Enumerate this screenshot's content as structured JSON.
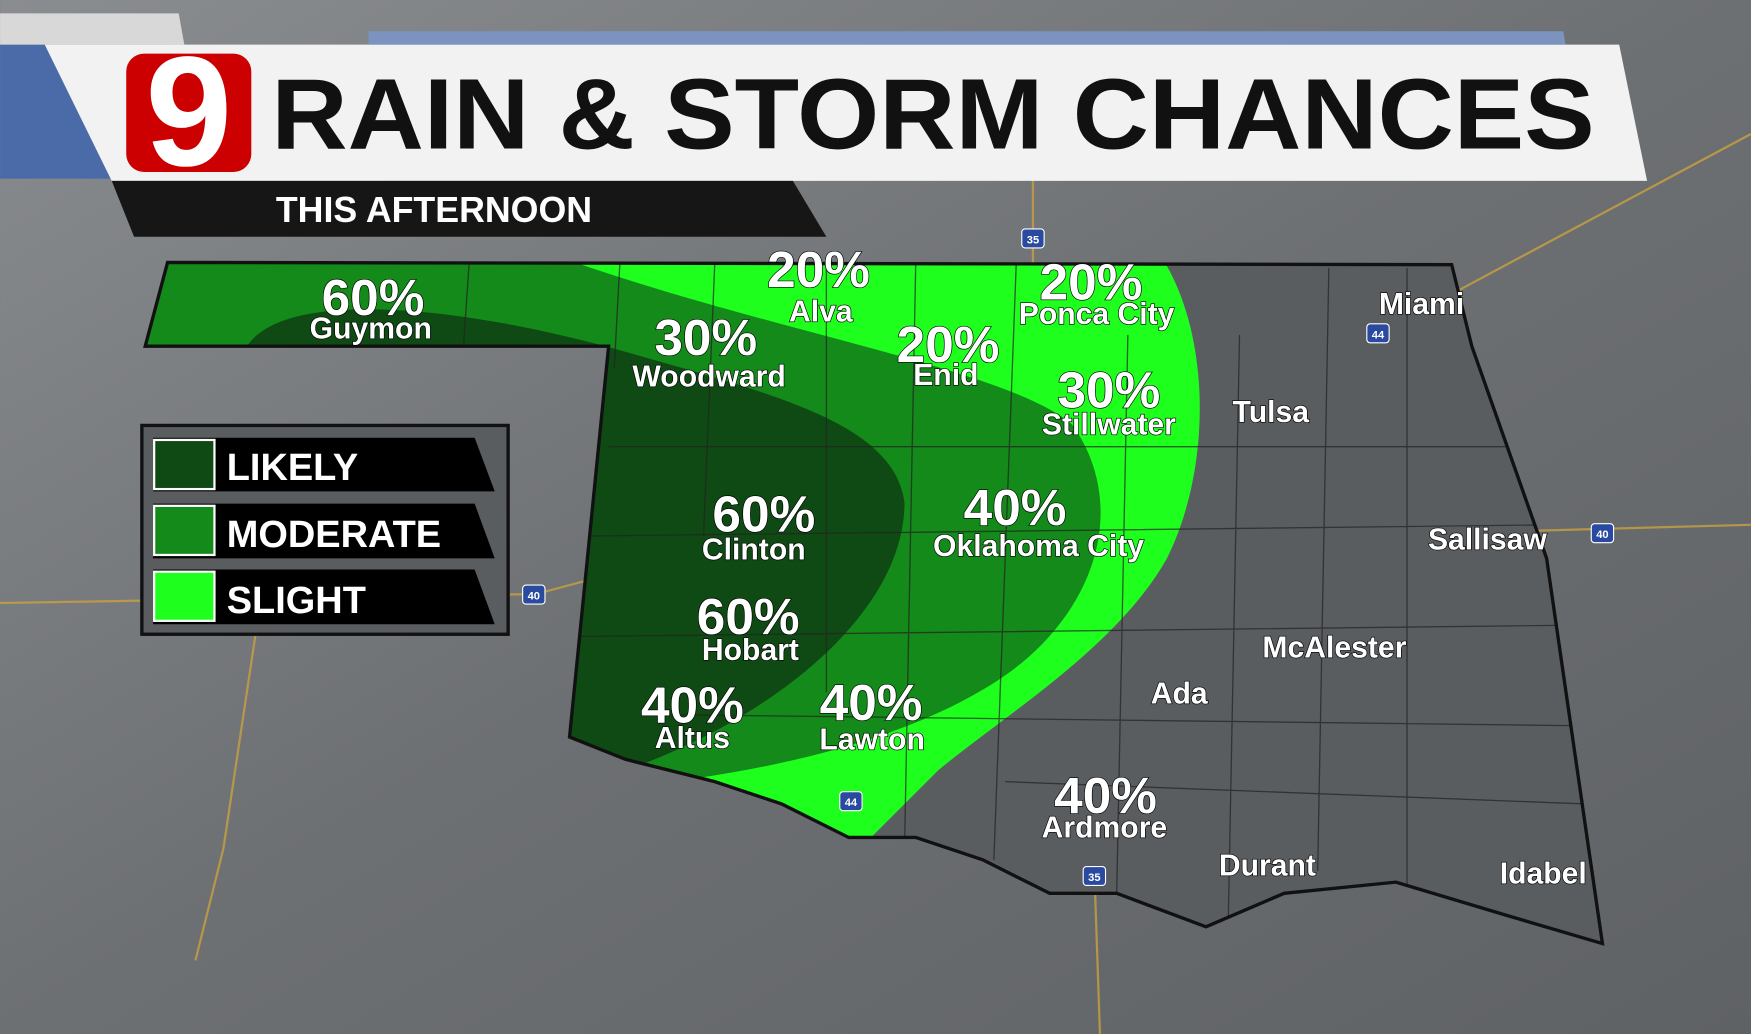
{
  "header": {
    "logo": "9",
    "title": "RAIN & STORM CHANCES",
    "subtitle": "THIS AFTERNOON"
  },
  "legend": {
    "items": [
      {
        "label": "LIKELY",
        "color": "#0f4a14"
      },
      {
        "label": "MODERATE",
        "color": "#138a1a"
      },
      {
        "label": "SLIGHT",
        "color": "#1eff1e"
      }
    ]
  },
  "colors": {
    "background": "#6e7174",
    "border": "#111111",
    "roads": "#c9a040",
    "brand_red": "#cc0000",
    "banner_blue": "#4a6aa8"
  },
  "cities_with_chance": [
    {
      "name": "Guymon",
      "chance": "60%"
    },
    {
      "name": "Alva",
      "chance": "20%"
    },
    {
      "name": "Woodward",
      "chance": "30%"
    },
    {
      "name": "Enid",
      "chance": "20%"
    },
    {
      "name": "Ponca City",
      "chance": "20%"
    },
    {
      "name": "Stillwater",
      "chance": "30%"
    },
    {
      "name": "Clinton",
      "chance": "60%"
    },
    {
      "name": "Oklahoma City",
      "chance": "40%"
    },
    {
      "name": "Hobart",
      "chance": "60%"
    },
    {
      "name": "Altus",
      "chance": "40%"
    },
    {
      "name": "Lawton",
      "chance": "40%"
    },
    {
      "name": "Ardmore",
      "chance": "40%"
    }
  ],
  "cities": [
    "Miami",
    "Tulsa",
    "Sallisaw",
    "McAlester",
    "Ada",
    "Durant",
    "Idabel"
  ],
  "interstates": [
    "35",
    "44",
    "40",
    "44",
    "40",
    "35"
  ]
}
